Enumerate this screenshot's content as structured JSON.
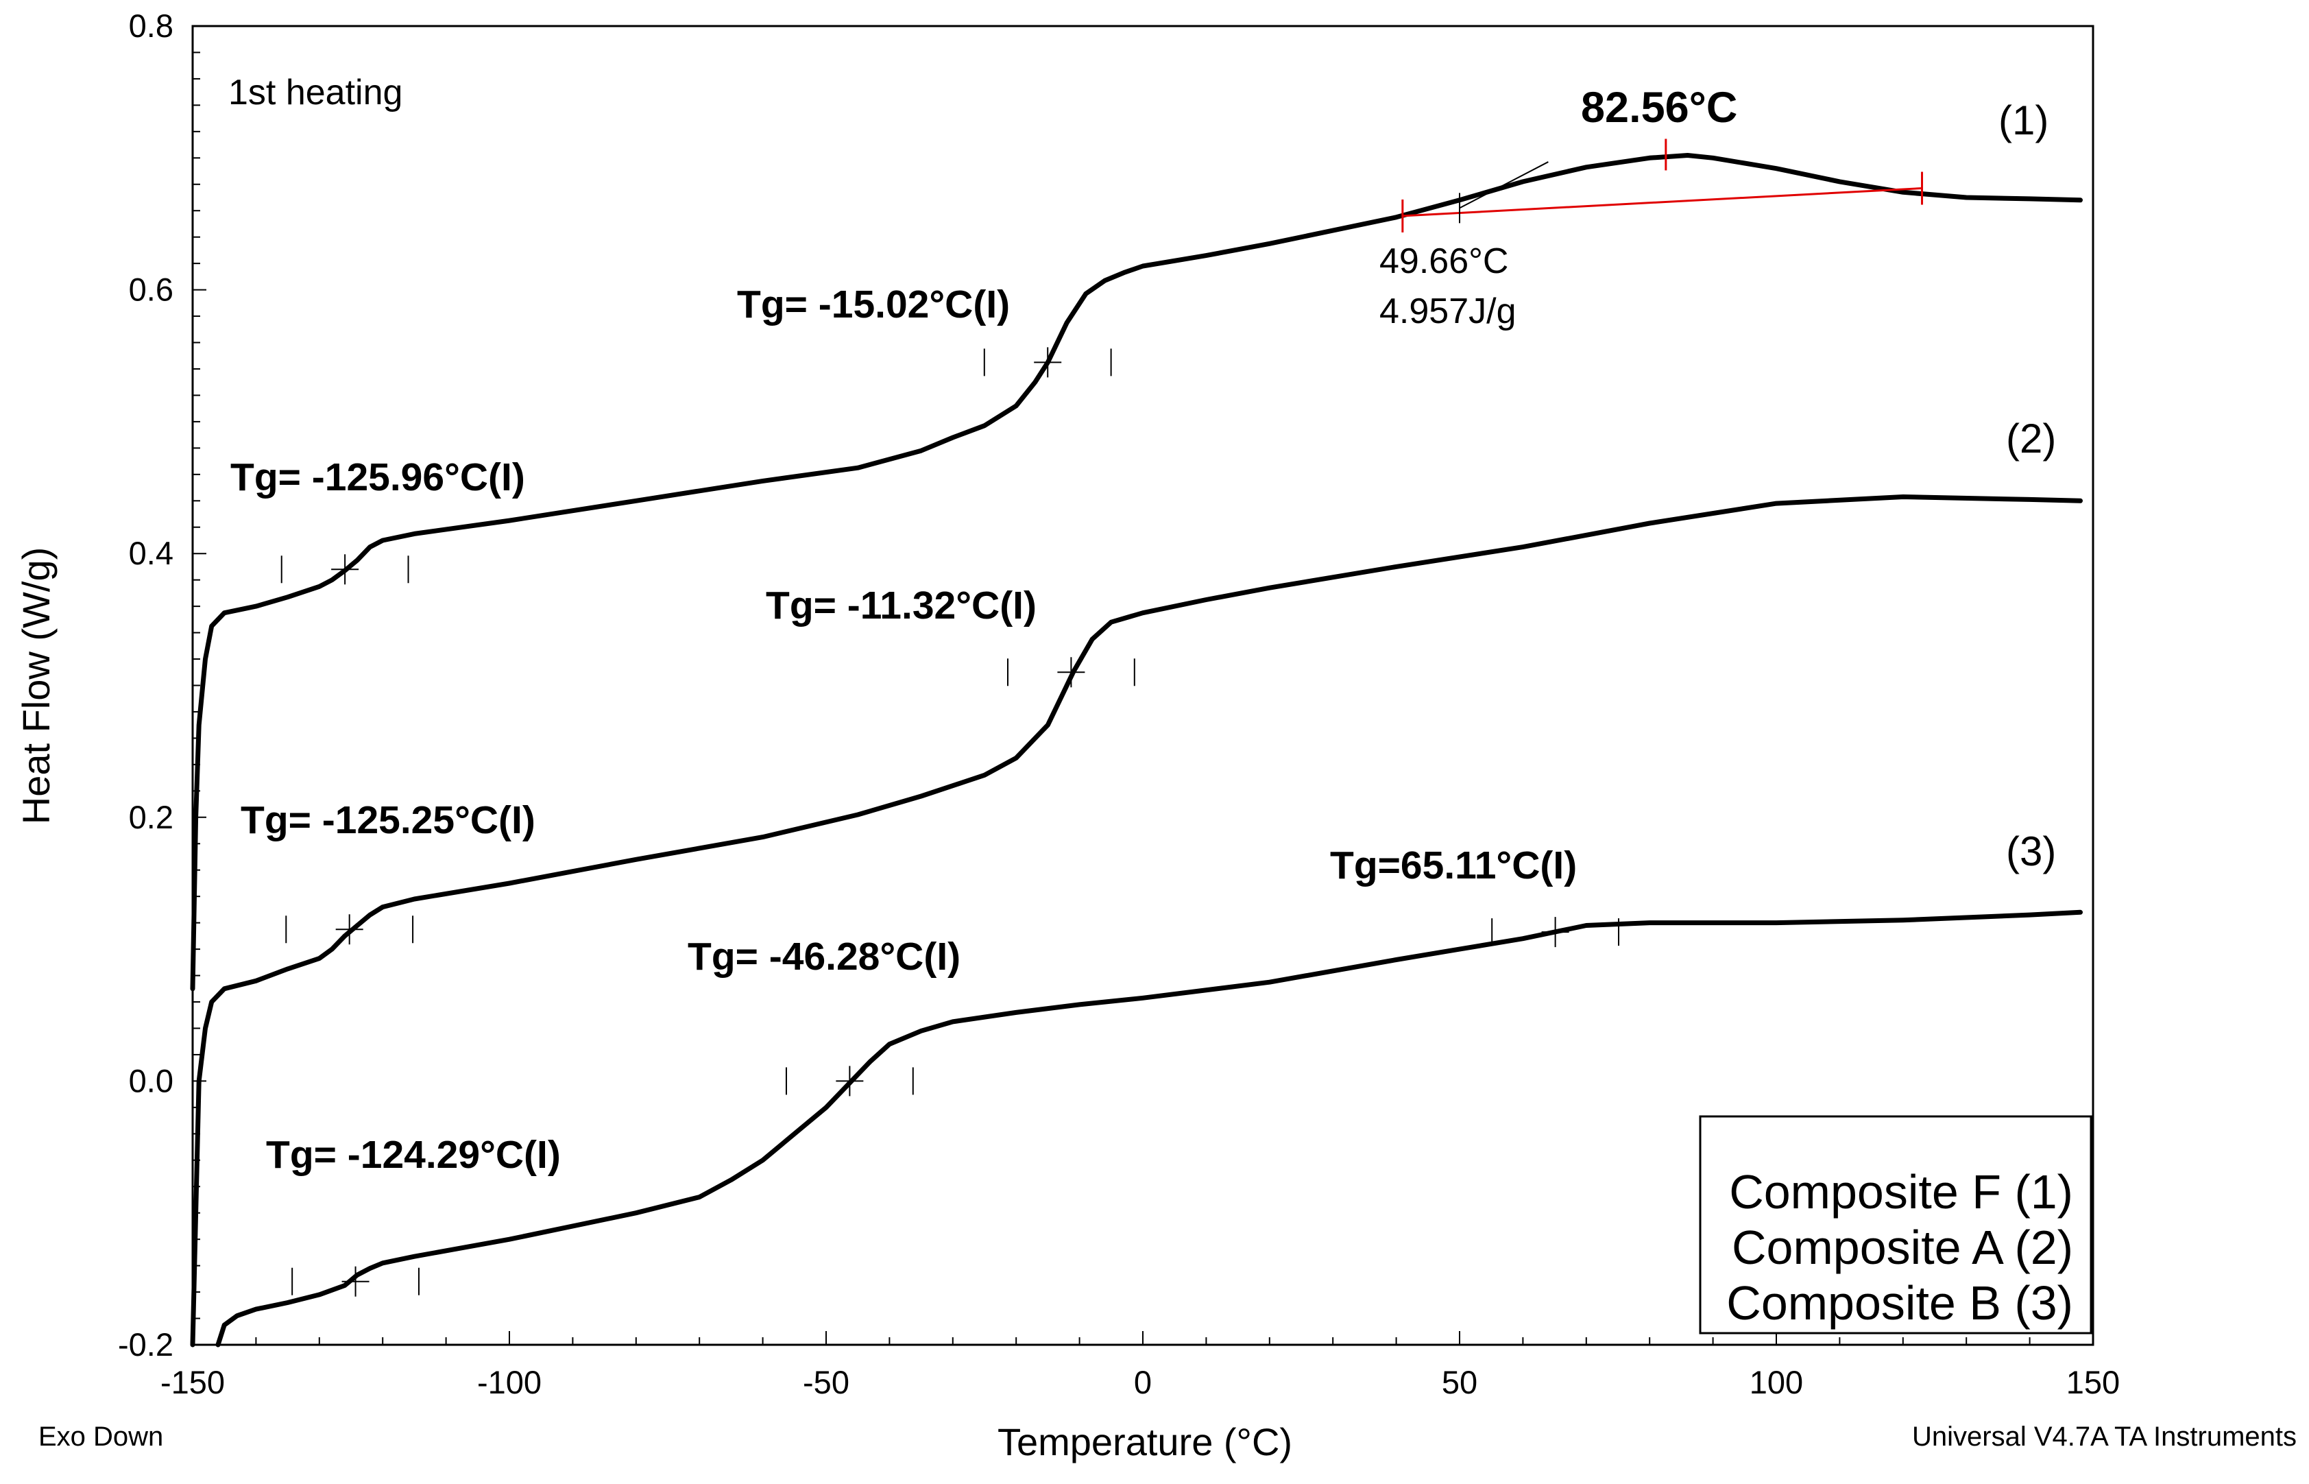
{
  "chart_data": {
    "type": "line",
    "title": "",
    "xlabel": "Temperature (°C)",
    "ylabel": "Heat Flow (W/g)",
    "xlim": [
      -150,
      150
    ],
    "ylim": [
      -0.2,
      0.8
    ],
    "x_ticks": [
      "-150",
      "-100",
      "-50",
      "0",
      "50",
      "100",
      "150"
    ],
    "y_ticks": [
      "-0.2",
      "0.0",
      "0.2",
      "0.4",
      "0.6",
      "0.8"
    ],
    "grid": false,
    "corner_left": "Exo Down",
    "corner_right": "Universal V4.7A TA Instruments",
    "heating_label": "1st heating",
    "legend": {
      "placement": "bottom-right",
      "entries": [
        "Composite F (1)",
        "Composite A (2)",
        "Composite B (3)"
      ]
    },
    "series": [
      {
        "name": "Composite F (1)",
        "curve_label": "(1)",
        "points": [
          [
            -150,
            0.07
          ],
          [
            -149.5,
            0.2
          ],
          [
            -149,
            0.27
          ],
          [
            -148,
            0.32
          ],
          [
            -147,
            0.345
          ],
          [
            -145,
            0.355
          ],
          [
            -140,
            0.36
          ],
          [
            -135,
            0.367
          ],
          [
            -130,
            0.375
          ],
          [
            -128,
            0.38
          ],
          [
            -126,
            0.387
          ],
          [
            -124,
            0.395
          ],
          [
            -122,
            0.405
          ],
          [
            -120,
            0.41
          ],
          [
            -115,
            0.415
          ],
          [
            -100,
            0.425
          ],
          [
            -80,
            0.44
          ],
          [
            -60,
            0.455
          ],
          [
            -45,
            0.465
          ],
          [
            -35,
            0.478
          ],
          [
            -30,
            0.488
          ],
          [
            -25,
            0.497
          ],
          [
            -20,
            0.512
          ],
          [
            -17,
            0.53
          ],
          [
            -15,
            0.545
          ],
          [
            -12,
            0.575
          ],
          [
            -9,
            0.597
          ],
          [
            -6,
            0.607
          ],
          [
            -3,
            0.613
          ],
          [
            0,
            0.618
          ],
          [
            10,
            0.626
          ],
          [
            20,
            0.635
          ],
          [
            30,
            0.645
          ],
          [
            40,
            0.655
          ],
          [
            50,
            0.668
          ],
          [
            60,
            0.682
          ],
          [
            70,
            0.693
          ],
          [
            80,
            0.7
          ],
          [
            86,
            0.702
          ],
          [
            90,
            0.7
          ],
          [
            100,
            0.692
          ],
          [
            110,
            0.682
          ],
          [
            120,
            0.674
          ],
          [
            130,
            0.67
          ],
          [
            140,
            0.669
          ],
          [
            148,
            0.668
          ]
        ]
      },
      {
        "name": "Composite A (2)",
        "curve_label": "(2)",
        "points": [
          [
            -150,
            -0.2
          ],
          [
            -149.5,
            -0.1
          ],
          [
            -149,
            0
          ],
          [
            -148,
            0.04
          ],
          [
            -147,
            0.06
          ],
          [
            -145,
            0.07
          ],
          [
            -140,
            0.076
          ],
          [
            -135,
            0.085
          ],
          [
            -130,
            0.093
          ],
          [
            -128,
            0.1
          ],
          [
            -126,
            0.11
          ],
          [
            -124,
            0.118
          ],
          [
            -122,
            0.126
          ],
          [
            -120,
            0.132
          ],
          [
            -115,
            0.138
          ],
          [
            -100,
            0.15
          ],
          [
            -80,
            0.168
          ],
          [
            -60,
            0.185
          ],
          [
            -45,
            0.202
          ],
          [
            -35,
            0.216
          ],
          [
            -25,
            0.232
          ],
          [
            -20,
            0.245
          ],
          [
            -15,
            0.27
          ],
          [
            -11,
            0.31
          ],
          [
            -8,
            0.335
          ],
          [
            -5,
            0.348
          ],
          [
            0,
            0.355
          ],
          [
            10,
            0.365
          ],
          [
            20,
            0.374
          ],
          [
            40,
            0.39
          ],
          [
            60,
            0.405
          ],
          [
            80,
            0.423
          ],
          [
            100,
            0.438
          ],
          [
            120,
            0.443
          ],
          [
            140,
            0.441
          ],
          [
            148,
            0.44
          ]
        ]
      },
      {
        "name": "Composite B (3)",
        "curve_label": "(3)",
        "points": [
          [
            -146,
            -0.2
          ],
          [
            -145,
            -0.185
          ],
          [
            -143,
            -0.178
          ],
          [
            -140,
            -0.173
          ],
          [
            -135,
            -0.168
          ],
          [
            -130,
            -0.162
          ],
          [
            -126,
            -0.155
          ],
          [
            -124,
            -0.147
          ],
          [
            -122,
            -0.142
          ],
          [
            -120,
            -0.138
          ],
          [
            -115,
            -0.133
          ],
          [
            -100,
            -0.12
          ],
          [
            -80,
            -0.1
          ],
          [
            -70,
            -0.088
          ],
          [
            -65,
            -0.075
          ],
          [
            -60,
            -0.06
          ],
          [
            -55,
            -0.04
          ],
          [
            -50,
            -0.02
          ],
          [
            -46,
            0
          ],
          [
            -43,
            0.015
          ],
          [
            -40,
            0.028
          ],
          [
            -35,
            0.038
          ],
          [
            -30,
            0.045
          ],
          [
            -20,
            0.052
          ],
          [
            -10,
            0.058
          ],
          [
            0,
            0.063
          ],
          [
            20,
            0.075
          ],
          [
            40,
            0.092
          ],
          [
            50,
            0.1
          ],
          [
            60,
            0.108
          ],
          [
            65,
            0.113
          ],
          [
            70,
            0.118
          ],
          [
            80,
            0.12
          ],
          [
            100,
            0.12
          ],
          [
            120,
            0.122
          ],
          [
            140,
            0.126
          ],
          [
            148,
            0.128
          ]
        ]
      }
    ],
    "annotations": [
      {
        "text": "Tg= -15.02°C(I)",
        "x": -15.02,
        "y": 0.545
      },
      {
        "text": "Tg= -125.96°C(I)",
        "x": -125.96,
        "y": 0.388
      },
      {
        "text": "Tg= -11.32°C(I)",
        "x": -11.32,
        "y": 0.31
      },
      {
        "text": "Tg= -125.25°C(I)",
        "x": -125.25,
        "y": 0.115
      },
      {
        "text": "Tg= -46.28°C(I)",
        "x": -46.28,
        "y": 0
      },
      {
        "text": "Tg=65.11°C(I)",
        "x": 65.11,
        "y": 0.113
      },
      {
        "text": "Tg= -124.29°C(I)",
        "x": -124.29,
        "y": -0.152
      }
    ],
    "peak": {
      "temperature_label": "82.56°C",
      "onset_temperature": "49.66°C",
      "enthalpy": "4.957J/g",
      "baseline": [
        [
          41,
          0.656
        ],
        [
          123,
          0.677
        ]
      ]
    }
  }
}
